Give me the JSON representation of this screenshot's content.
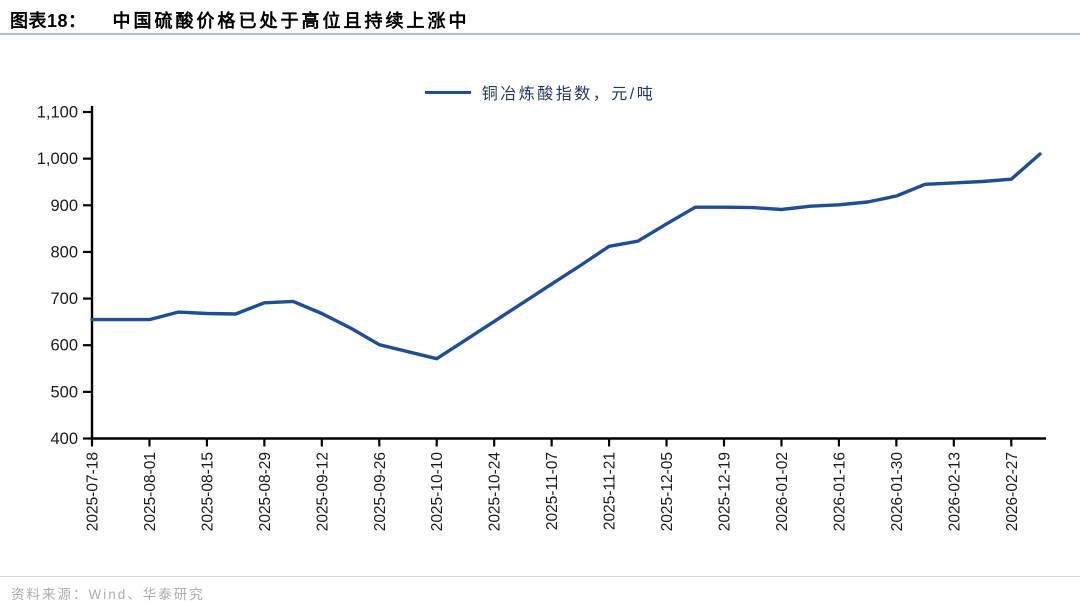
{
  "header": {
    "figure_label": "图表18：",
    "title": "中国硫酸价格已处于高位且持续上涨中"
  },
  "footer": {
    "source": "资料来源：Wind、华泰研究"
  },
  "chart_data": {
    "type": "line",
    "title": "图表18： 中国硫酸价格已处于高位且持续上涨中",
    "legend_position": "top-center",
    "grid": false,
    "line_color": "#1F4E96",
    "axis_color": "#000000",
    "ylim": [
      400,
      1100
    ],
    "y_ticks": [
      400,
      500,
      600,
      700,
      800,
      900,
      1000,
      1100
    ],
    "y_tick_labels": [
      "400",
      "500",
      "600",
      "700",
      "800",
      "900",
      "1,000",
      "1,100"
    ],
    "x_tick_labels": [
      "2025-07-18",
      "2025-08-01",
      "2025-08-15",
      "2025-08-29",
      "2025-09-12",
      "2025-09-26",
      "2025-10-10",
      "2025-10-24",
      "2025-11-07",
      "2025-11-21",
      "2025-12-05",
      "2025-12-19",
      "2026-01-02",
      "2026-01-16",
      "2026-01-30",
      "2026-02-13",
      "2026-02-27"
    ],
    "x_tick_every_n_points": 2,
    "x": [
      "2025-07-18",
      "2025-07-25",
      "2025-08-01",
      "2025-08-08",
      "2025-08-15",
      "2025-08-22",
      "2025-08-29",
      "2025-09-05",
      "2025-09-12",
      "2025-09-19",
      "2025-09-26",
      "2025-10-03",
      "2025-10-10",
      "2025-10-17",
      "2025-10-24",
      "2025-10-31",
      "2025-11-07",
      "2025-11-14",
      "2025-11-21",
      "2025-11-28",
      "2025-12-05",
      "2025-12-12",
      "2025-12-19",
      "2025-12-26",
      "2026-01-02",
      "2026-01-09",
      "2026-01-16",
      "2026-01-23",
      "2026-01-30",
      "2026-02-06",
      "2026-02-13",
      "2026-02-20",
      "2026-02-27",
      "2026-03-06"
    ],
    "series": [
      {
        "name": "铜冶炼酸指数，元/吨",
        "color": "#1F4E96",
        "values": [
          655,
          655,
          655,
          671,
          668,
          667,
          691,
          694,
          668,
          637,
          601,
          586,
          571,
          611,
          651,
          691,
          731,
          771,
          812,
          823,
          860,
          896,
          896,
          895,
          891,
          898,
          901,
          907,
          920,
          945,
          948,
          951,
          956,
          1010
        ]
      }
    ]
  }
}
